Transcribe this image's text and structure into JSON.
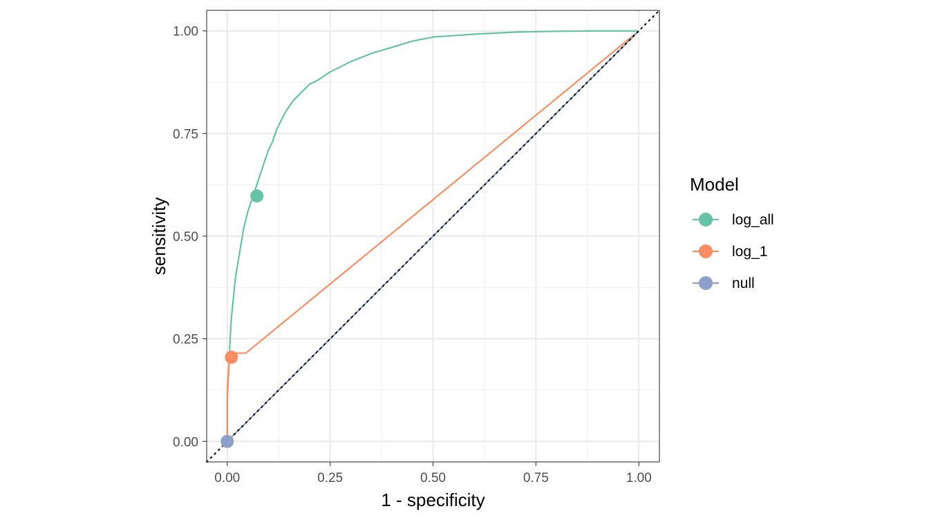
{
  "chart_data": {
    "type": "line",
    "xlabel": "1 - specificity",
    "ylabel": "sensitivity",
    "xlim": [
      -0.05,
      1.05
    ],
    "ylim": [
      -0.05,
      1.05
    ],
    "x_ticks": [
      0.0,
      0.25,
      0.5,
      0.75,
      1.0
    ],
    "x_tick_labels": [
      "0.00",
      "0.25",
      "0.50",
      "0.75",
      "1.00"
    ],
    "y_ticks": [
      0.0,
      0.25,
      0.5,
      0.75,
      1.0
    ],
    "y_tick_labels": [
      "0.00",
      "0.25",
      "0.50",
      "0.75",
      "1.00"
    ],
    "grid": true,
    "legend": {
      "title": "Model",
      "position": "right"
    },
    "reference_line": {
      "style": "dotted",
      "color": "#000000",
      "from": [
        -0.05,
        -0.05
      ],
      "to": [
        1.05,
        1.05
      ]
    },
    "series": [
      {
        "name": "log_all",
        "color": "#66C2A5",
        "x": [
          0.0,
          0.0,
          0.005,
          0.007,
          0.01,
          0.015,
          0.02,
          0.03,
          0.04,
          0.05,
          0.06,
          0.07,
          0.08,
          0.09,
          0.1,
          0.11,
          0.12,
          0.14,
          0.16,
          0.18,
          0.2,
          0.22,
          0.25,
          0.3,
          0.35,
          0.4,
          0.45,
          0.5,
          0.6,
          0.7,
          0.8,
          0.9,
          1.0
        ],
        "y": [
          0.0,
          0.1,
          0.2,
          0.25,
          0.3,
          0.35,
          0.4,
          0.46,
          0.52,
          0.56,
          0.59,
          0.62,
          0.65,
          0.68,
          0.71,
          0.73,
          0.76,
          0.8,
          0.83,
          0.85,
          0.87,
          0.88,
          0.9,
          0.925,
          0.945,
          0.96,
          0.975,
          0.985,
          0.992,
          0.997,
          0.999,
          1.0,
          1.0
        ]
      },
      {
        "name": "log_1",
        "color": "#FC8D62",
        "x": [
          0.0,
          0.0,
          0.004,
          0.008,
          0.015,
          0.045,
          1.0
        ],
        "y": [
          0.0,
          0.12,
          0.19,
          0.205,
          0.215,
          0.215,
          1.0
        ]
      },
      {
        "name": "null",
        "color": "#8DA0CB",
        "x": [
          0.0,
          1.0
        ],
        "y": [
          0.0,
          1.0
        ]
      }
    ],
    "highlight_points": [
      {
        "series": "log_all",
        "x": 0.072,
        "y": 0.598
      },
      {
        "series": "log_1",
        "x": 0.01,
        "y": 0.205
      },
      {
        "series": "null",
        "x": 0.0,
        "y": 0.0
      }
    ]
  }
}
